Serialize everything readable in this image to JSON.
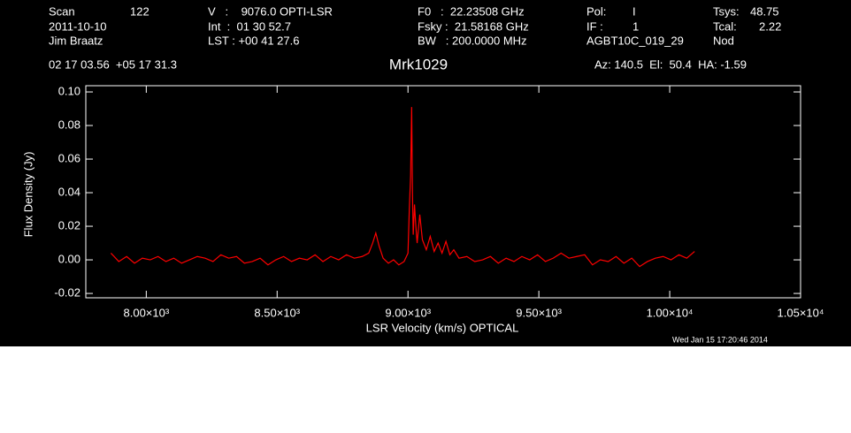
{
  "chart_data": {
    "type": "line",
    "title": "Mrk1029",
    "x_label": "LSR Velocity (km/s) OPTICAL",
    "y_label": "Flux Density (Jy)",
    "annotations": [
      "Scan",
      "122",
      "2011-10-10",
      "Jim Braatz",
      "V   :    9076.0 OPTI-LSR",
      "Int  :  01 30 52.7",
      "LST : +00 41 27.6",
      "F0   :  22.23508 GHz",
      "Fsky :  21.58168 GHz",
      "BW   : 200.0000 MHz",
      "Pol:",
      "I",
      "IF :",
      "1",
      "AGBT10C_019_29",
      "Tsys:",
      "48.75",
      "Tcal:",
      "2.22",
      "Nod",
      "02 17 03.56  +05 17 31.3",
      "Az: 140.5  El:  50.4  HA: -1.59",
      "Wed Jan 15 17:20:46 2014"
    ],
    "xlim": [
      7769,
      10500
    ],
    "ylim": [
      -0.0226,
      0.1037
    ],
    "xticks": [
      {
        "value": 8000,
        "label": "8.00×10³"
      },
      {
        "value": 8500,
        "label": "8.50×10³"
      },
      {
        "value": 9000,
        "label": "9.00×10³"
      },
      {
        "value": 9500,
        "label": "9.50×10³"
      },
      {
        "value": 10000,
        "label": "1.00×10⁴"
      },
      {
        "value": 10500,
        "label": "1.05×10⁴"
      }
    ],
    "yticks": [
      {
        "value": -0.02,
        "label": "-0.02"
      },
      {
        "value": 0,
        "label": "0.00"
      },
      0.02,
      0.04,
      0.06,
      0.08,
      {
        "value": 0.1,
        "label": "0.10"
      }
    ],
    "x": [
      7865,
      7895,
      7925,
      7955,
      7985,
      8015,
      8045,
      8075,
      8105,
      8135,
      8165,
      8195,
      8225,
      8255,
      8285,
      8315,
      8345,
      8375,
      8405,
      8435,
      8465,
      8495,
      8525,
      8555,
      8585,
      8615,
      8645,
      8675,
      8705,
      8735,
      8765,
      8795,
      8825,
      8850,
      8865,
      8877,
      8890,
      8905,
      8925,
      8945,
      8965,
      8985,
      9000,
      9005,
      9010,
      9014,
      9017,
      9020,
      9025,
      9030,
      9035,
      9045,
      9055,
      9070,
      9085,
      9100,
      9115,
      9130,
      9145,
      9160,
      9175,
      9195,
      9225,
      9255,
      9285,
      9315,
      9345,
      9375,
      9405,
      9435,
      9465,
      9495,
      9525,
      9555,
      9585,
      9615,
      9645,
      9675,
      9705,
      9735,
      9765,
      9795,
      9825,
      9855,
      9885,
      9915,
      9945,
      9975,
      10005,
      10035,
      10065,
      10095
    ],
    "series": [
      {
        "color": "#ff0000",
        "values": [
          0.004,
          -0.001,
          0.002,
          -0.002,
          0.001,
          0.0,
          0.002,
          -0.001,
          0.001,
          -0.002,
          0.0,
          0.002,
          0.001,
          -0.001,
          0.003,
          0.001,
          0.002,
          -0.002,
          -0.001,
          0.001,
          -0.003,
          0.0,
          0.002,
          -0.001,
          0.001,
          0.0,
          0.003,
          -0.001,
          0.002,
          0.0,
          0.003,
          0.001,
          0.002,
          0.004,
          0.01,
          0.016,
          0.008,
          0.001,
          -0.002,
          0.0,
          -0.003,
          -0.001,
          0.004,
          0.03,
          0.05,
          0.091,
          0.04,
          0.015,
          0.033,
          0.02,
          0.01,
          0.027,
          0.012,
          0.006,
          0.014,
          0.005,
          0.01,
          0.004,
          0.011,
          0.003,
          0.006,
          0.001,
          0.002,
          -0.001,
          0.0,
          0.002,
          -0.002,
          0.001,
          -0.001,
          0.002,
          0.0,
          0.003,
          -0.001,
          0.001,
          0.004,
          0.001,
          0.002,
          0.003,
          -0.003,
          0.0,
          -0.001,
          0.002,
          -0.002,
          0.001,
          -0.004,
          -0.001,
          0.001,
          0.002,
          0.0,
          0.003,
          0.001,
          0.005
        ]
      }
    ]
  }
}
